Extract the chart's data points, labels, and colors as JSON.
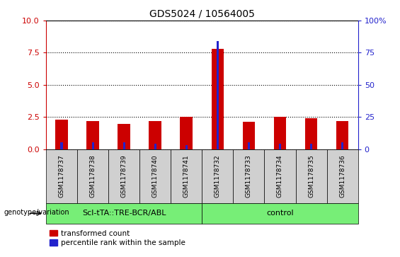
{
  "title": "GDS5024 / 10564005",
  "samples": [
    "GSM1178737",
    "GSM1178738",
    "GSM1178739",
    "GSM1178740",
    "GSM1178741",
    "GSM1178732",
    "GSM1178733",
    "GSM1178734",
    "GSM1178735",
    "GSM1178736"
  ],
  "transformed_counts": [
    2.3,
    2.2,
    1.95,
    2.2,
    2.5,
    7.8,
    2.1,
    2.5,
    2.4,
    2.2
  ],
  "percentile_ranks": [
    5.0,
    5.0,
    5.0,
    4.0,
    3.0,
    84.0,
    5.0,
    4.0,
    4.0,
    5.0
  ],
  "group1_label": "Scl-tTA::TRE-BCR/ABL",
  "group2_label": "control",
  "group1_count": 5,
  "group2_count": 5,
  "bar_color_red": "#cc0000",
  "bar_color_blue": "#2222cc",
  "group_bg_color": "#77ee77",
  "sample_bg_color": "#d0d0d0",
  "left_axis_color": "#cc0000",
  "right_axis_color": "#2222cc",
  "ylim_left": [
    0,
    10
  ],
  "ylim_right": [
    0,
    100
  ],
  "yticks_left": [
    0,
    2.5,
    5.0,
    7.5,
    10
  ],
  "yticks_right": [
    0,
    25,
    50,
    75,
    100
  ],
  "legend_items": [
    "transformed count",
    "percentile rank within the sample"
  ],
  "genotype_label": "genotype/variation",
  "red_bar_width": 0.4,
  "blue_bar_width": 0.07
}
